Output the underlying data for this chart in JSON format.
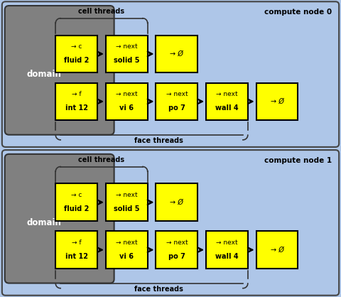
{
  "bg_color": "#aec6e8",
  "domain_color": "#808080",
  "box_color": "#ffff00",
  "box_edge": "#000000",
  "text_color": "#000000",
  "panel_edge": "#555555",
  "panels": [
    {
      "label": "compute node 0",
      "cell_row": [
        {
          "lines": [
            "→ c",
            "fluid 2"
          ]
        },
        {
          "lines": [
            "→ next",
            "solid 5"
          ]
        },
        {
          "lines": [
            "→ Ø"
          ]
        }
      ],
      "face_row": [
        {
          "lines": [
            "→ f",
            "int 12"
          ]
        },
        {
          "lines": [
            "→ next",
            "vi 6"
          ]
        },
        {
          "lines": [
            "→ next",
            "po 7"
          ]
        },
        {
          "lines": [
            "→ next",
            "wall 4"
          ]
        },
        {
          "lines": [
            "→ Ø"
          ]
        }
      ]
    },
    {
      "label": "compute node 1",
      "cell_row": [
        {
          "lines": [
            "→ c",
            "fluid 2"
          ]
        },
        {
          "lines": [
            "→ next",
            "solid 5"
          ]
        },
        {
          "lines": [
            "→ Ø"
          ]
        }
      ],
      "face_row": [
        {
          "lines": [
            "→ f",
            "int 12"
          ]
        },
        {
          "lines": [
            "→ next",
            "vi 6"
          ]
        },
        {
          "lines": [
            "→ next",
            "po 7"
          ]
        },
        {
          "lines": [
            "→ next",
            "wall 4"
          ]
        },
        {
          "lines": [
            "→ Ø"
          ]
        }
      ]
    }
  ]
}
